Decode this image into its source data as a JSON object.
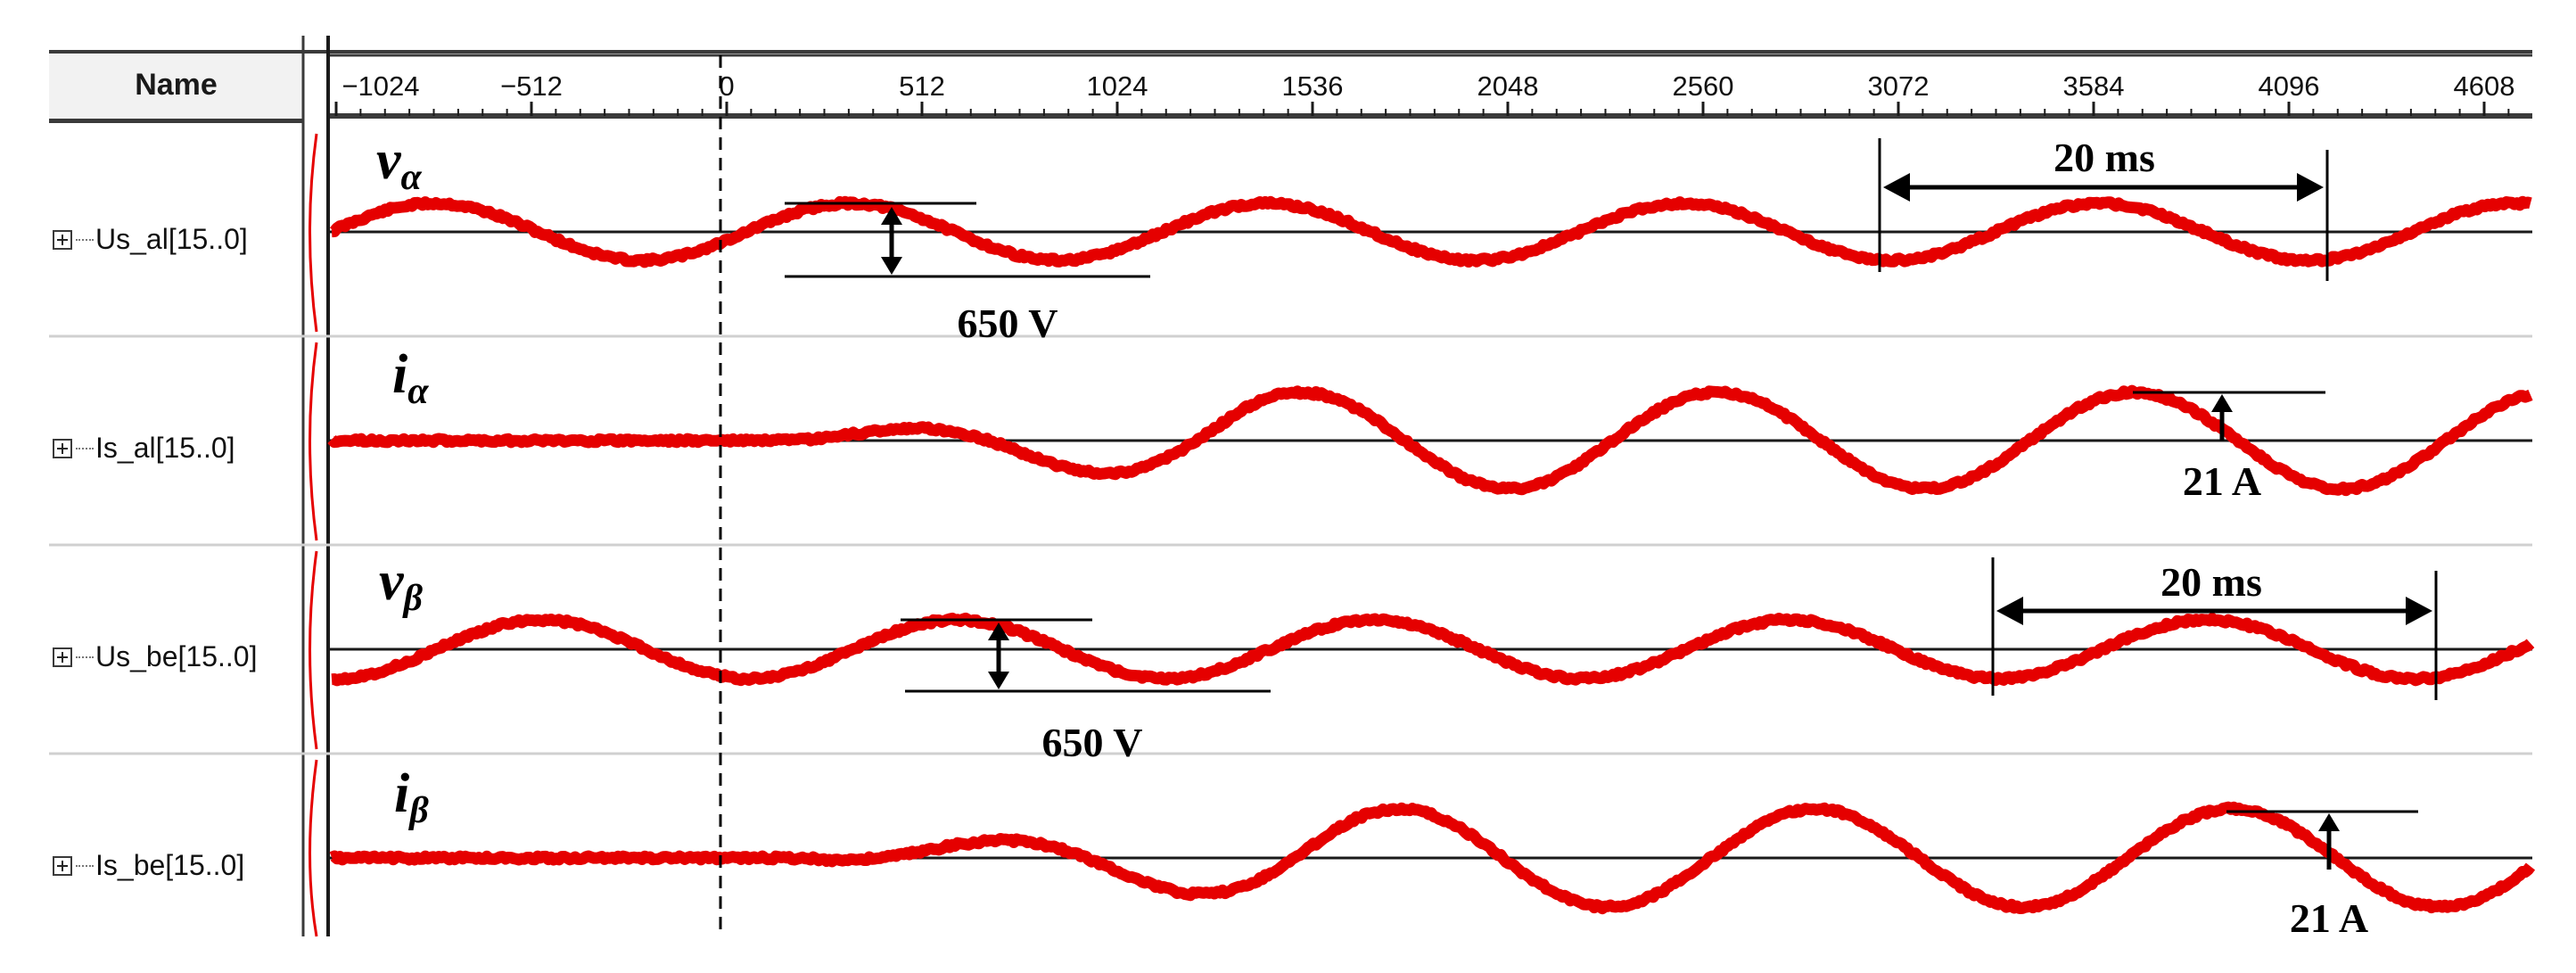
{
  "name_column": {
    "header": "Name",
    "signals": [
      {
        "label": "Us_al[15..0]"
      },
      {
        "label": "Is_al[15..0]"
      },
      {
        "label": "Us_be[15..0]"
      },
      {
        "label": "Is_be[15..0]"
      }
    ]
  },
  "time_ruler": {
    "ticks": [
      "-1024",
      "-512",
      "0",
      "512",
      "1024",
      "1536",
      "2048",
      "2560",
      "3072",
      "3584",
      "4096",
      "4608"
    ]
  },
  "waveforms": [
    {
      "symbol": "v",
      "subscript": "α",
      "amplitude_note": "650 V",
      "period_note": "20 ms"
    },
    {
      "symbol": "i",
      "subscript": "α",
      "amplitude_note": "21 A"
    },
    {
      "symbol": "v",
      "subscript": "β",
      "amplitude_note": "650 V",
      "period_note": "20 ms"
    },
    {
      "symbol": "i",
      "subscript": "β",
      "amplitude_note": "21 A"
    }
  ],
  "colors": {
    "waveform": "#e50000",
    "baseline": "#1a1a1a",
    "grid_line": "#d0d0d0",
    "cursor": "#000000"
  }
}
